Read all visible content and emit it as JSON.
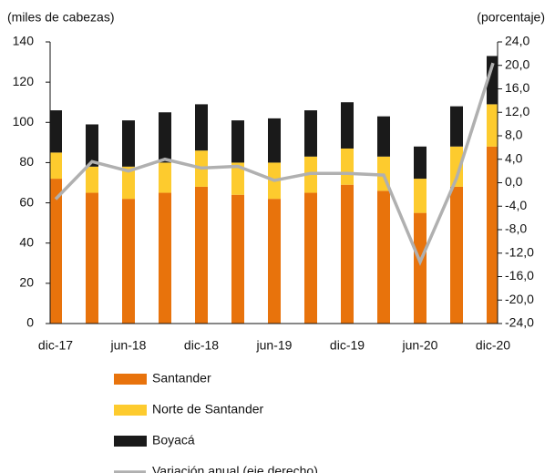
{
  "chart_data": {
    "type": "bar",
    "ylabel": "(miles de cabezas)",
    "y2label": "(porcentaje)",
    "categories": [
      "dic-17",
      null,
      "jun-18",
      null,
      "dic-18",
      null,
      "jun-19",
      null,
      "dic-19",
      null,
      "jun-20",
      null,
      "dic-20"
    ],
    "stacked": true,
    "series": [
      {
        "name": "Santander",
        "color": "#e8730c",
        "values": [
          72,
          65,
          62,
          65,
          68,
          64,
          62,
          65,
          69,
          66,
          55,
          68,
          88
        ]
      },
      {
        "name": "Norte de Santander",
        "color": "#fdcb2e",
        "values": [
          13,
          13,
          16,
          15,
          18,
          16,
          18,
          18,
          18,
          17,
          17,
          20,
          21
        ]
      },
      {
        "name": "Boyacá",
        "color": "#1a1a1a",
        "values": [
          21,
          21,
          23,
          25,
          23,
          21,
          22,
          23,
          23,
          20,
          16,
          20,
          24
        ]
      },
      {
        "name": "Variación anual (eje derecho)",
        "color": "#b0b0b0",
        "type": "line",
        "axis": "y2",
        "values": [
          -2.8,
          3.6,
          2.0,
          4.0,
          2.5,
          2.8,
          0.4,
          1.6,
          1.6,
          1.3,
          -13.5,
          0.8,
          20.4
        ]
      }
    ],
    "ylim": [
      0,
      140
    ],
    "yticks": [
      0,
      20,
      40,
      60,
      80,
      100,
      120,
      140
    ],
    "y2lim": [
      -24,
      24
    ],
    "y2ticks": [
      {
        "value": 24,
        "label": "24,0"
      },
      {
        "value": 20,
        "label": "20,0"
      },
      {
        "value": 16,
        "label": "16,0"
      },
      {
        "value": 12,
        "label": "12,0"
      },
      {
        "value": 8,
        "label": "8,0"
      },
      {
        "value": 4,
        "label": "4,0"
      },
      {
        "value": 0,
        "label": "0,0"
      },
      {
        "value": -4,
        "label": "-4,0"
      },
      {
        "value": -8,
        "label": "-8,0"
      },
      {
        "value": -12,
        "label": "-12,0"
      },
      {
        "value": -16,
        "label": "-16,0"
      },
      {
        "value": -20,
        "label": "-20,0"
      },
      {
        "value": -24,
        "label": "-24,0"
      }
    ],
    "legend": "bottom"
  }
}
